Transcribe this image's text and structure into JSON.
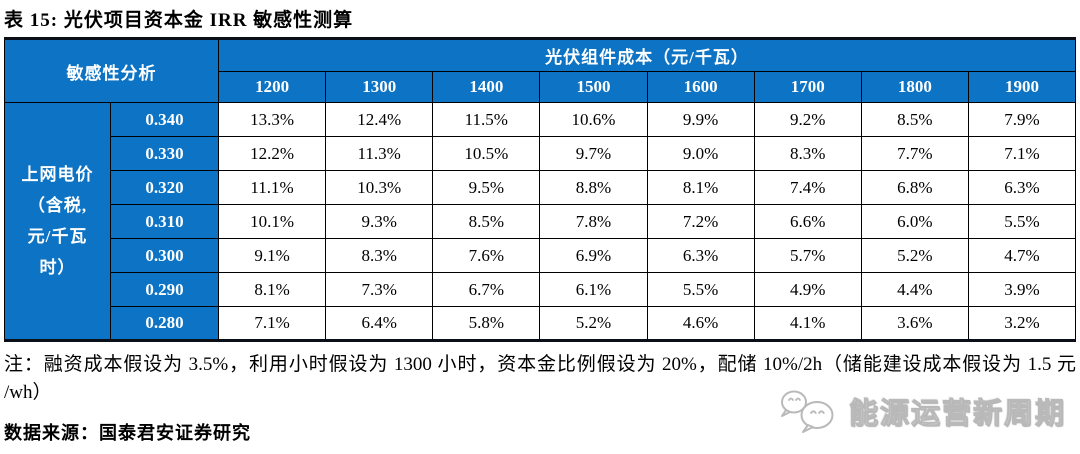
{
  "title": "表 15: 光伏项目资本金 IRR 敏感性测算",
  "table": {
    "corner_label": "敏感性分析",
    "top_header": "光伏组件成本（元/千瓦）",
    "col_headers": [
      "1200",
      "1300",
      "1400",
      "1500",
      "1600",
      "1700",
      "1800",
      "1900"
    ],
    "side_label_lines": [
      "上网电价",
      "（含税,",
      "元/千瓦",
      "时）"
    ],
    "rows": [
      {
        "price": "0.340",
        "values": [
          "13.3%",
          "12.4%",
          "11.5%",
          "10.6%",
          "9.9%",
          "9.2%",
          "8.5%",
          "7.9%"
        ]
      },
      {
        "price": "0.330",
        "values": [
          "12.2%",
          "11.3%",
          "10.5%",
          "9.7%",
          "9.0%",
          "8.3%",
          "7.7%",
          "7.1%"
        ]
      },
      {
        "price": "0.320",
        "values": [
          "11.1%",
          "10.3%",
          "9.5%",
          "8.8%",
          "8.1%",
          "7.4%",
          "6.8%",
          "6.3%"
        ]
      },
      {
        "price": "0.310",
        "values": [
          "10.1%",
          "9.3%",
          "8.5%",
          "7.8%",
          "7.2%",
          "6.6%",
          "6.0%",
          "5.5%"
        ]
      },
      {
        "price": "0.300",
        "values": [
          "9.1%",
          "8.3%",
          "7.6%",
          "6.9%",
          "6.3%",
          "5.7%",
          "5.2%",
          "4.7%"
        ]
      },
      {
        "price": "0.290",
        "values": [
          "8.1%",
          "7.3%",
          "6.7%",
          "6.1%",
          "5.5%",
          "4.9%",
          "4.4%",
          "3.9%"
        ]
      },
      {
        "price": "0.280",
        "values": [
          "7.1%",
          "6.4%",
          "5.8%",
          "5.2%",
          "4.6%",
          "4.1%",
          "3.6%",
          "3.2%"
        ]
      }
    ]
  },
  "note": {
    "line1": "注：融资成本假设为 3.5%，利用小时假设为 1300 小时，资本金比例假设为 20%，配储 10%/2h（储能建设成本假设为 1.5 元",
    "line2": "/wh）"
  },
  "source": "数据来源：国泰君安证券研究",
  "watermark": {
    "icon": "wechat-bubbles-icon",
    "text": "能源运营新周期"
  },
  "colors": {
    "header_blue": "#0d73c4",
    "border_dark": "#0a0f18",
    "cell_text": "#000000",
    "watermark_gray": "#b9b9b9"
  }
}
